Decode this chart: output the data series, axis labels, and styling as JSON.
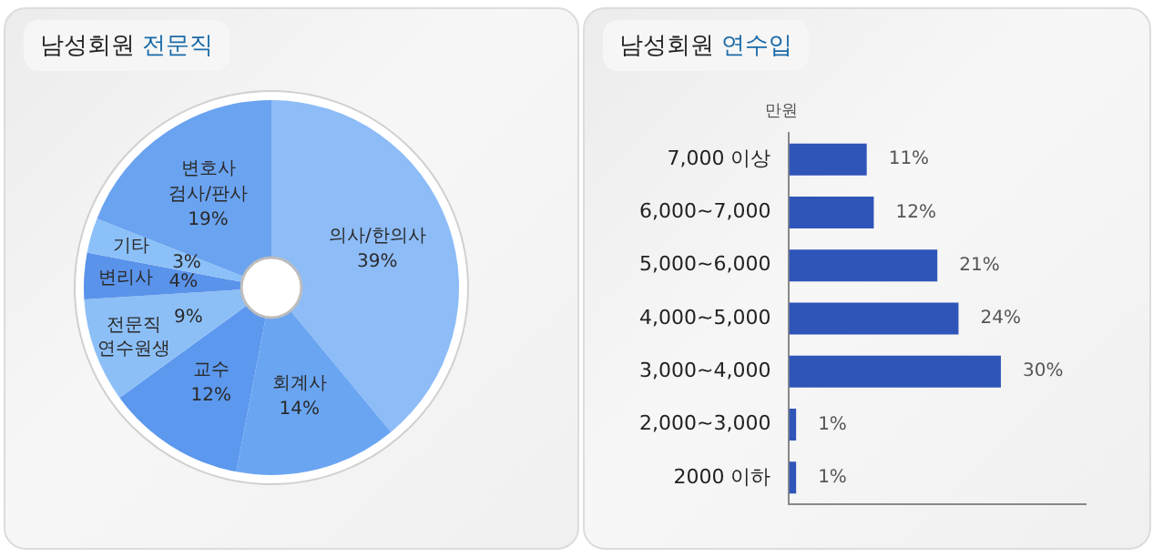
{
  "chart_data": [
    {
      "type": "donut",
      "title": "남성회원 전문직",
      "categories": [
        "의사/한의사",
        "회계사",
        "교수",
        "전문직\n연수원생",
        "변리사",
        "기타",
        "변호사\n검사/판사"
      ],
      "values": [
        39,
        14,
        12,
        9,
        4,
        3,
        19
      ],
      "value_labels": [
        "39%",
        "14%",
        "12%",
        "9%",
        "4%",
        "3%",
        "19%"
      ],
      "colors": [
        "#8dbcf7",
        "#6aa5f2",
        "#5c98ee",
        "#8dbff7",
        "#5a93ea",
        "#8cc0f8",
        "#6aa3f0"
      ],
      "legend": false
    },
    {
      "type": "bar",
      "orientation": "horizontal",
      "title": "남성회원 연수입",
      "ylabel": "만원",
      "categories": [
        "7,000 이상",
        "6,000~7,000",
        "5,000~6,000",
        "4,000~5,000",
        "3,000~4,000",
        "2,000~3,000",
        "2000 이하"
      ],
      "values": [
        11,
        12,
        21,
        24,
        30,
        1,
        1
      ],
      "value_labels": [
        "11%",
        "12%",
        "21%",
        "24%",
        "30%",
        "1%",
        "1%"
      ],
      "color": "#2f55b8",
      "xlim": [
        0,
        42
      ],
      "tick_labels": "y",
      "grid": false,
      "legend": false
    }
  ]
}
